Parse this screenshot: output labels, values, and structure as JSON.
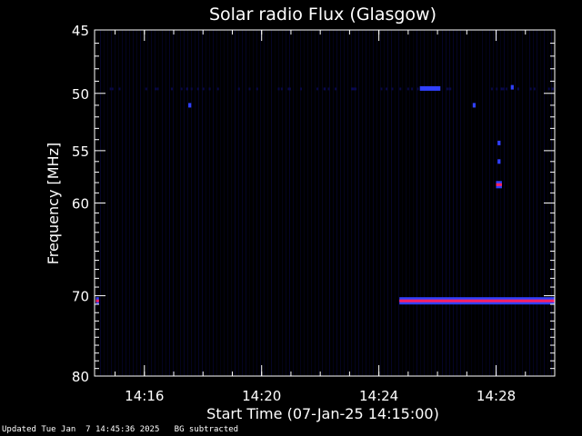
{
  "chart_data": {
    "type": "heatmap",
    "title": "Solar radio Flux (Glasgow)",
    "xlabel": "Start Time (07-Jan-25 14:15:00)",
    "ylabel": "Frequency [MHz]",
    "x_range_minutes": [
      14.3,
      30.0
    ],
    "x_ticks": [
      {
        "label": "14:16",
        "value": 16
      },
      {
        "label": "14:20",
        "value": 20
      },
      {
        "label": "14:24",
        "value": 24
      },
      {
        "label": "14:28",
        "value": 28
      }
    ],
    "y_scale": "log",
    "y_range": [
      45,
      80
    ],
    "y_ticks": [
      "45",
      "50",
      "55",
      "60",
      "70",
      "80"
    ],
    "y_tick_values": [
      45,
      50,
      55,
      60,
      70,
      80
    ],
    "features": [
      {
        "name": "",
        "freq_mhz": 70.6,
        "t_start": 24.7,
        "t_end": 30.0,
        "intensity": 1.0
      },
      {
        "name": "",
        "freq_mhz": 70.6,
        "t_start": 14.35,
        "t_end": 14.45,
        "intensity": 0.8
      },
      {
        "name": "",
        "freq_mhz": 58.2,
        "t_start": 28.0,
        "t_end": 28.2,
        "intensity": 0.9
      },
      {
        "name": "",
        "freq_mhz": 54.3,
        "t_start": 28.05,
        "t_end": 28.15,
        "intensity": 0.5
      },
      {
        "name": "",
        "freq_mhz": 56.0,
        "t_start": 28.05,
        "t_end": 28.15,
        "intensity": 0.4
      },
      {
        "name": "",
        "freq_mhz": 49.6,
        "t_start": 25.4,
        "t_end": 26.1,
        "intensity": 0.4
      },
      {
        "name": "",
        "freq_mhz": 49.5,
        "t_start": 28.5,
        "t_end": 28.6,
        "intensity": 0.35
      },
      {
        "name": "",
        "freq_mhz": 51.0,
        "t_start": 17.5,
        "t_end": 17.6,
        "intensity": 0.3
      },
      {
        "name": "",
        "freq_mhz": 51.0,
        "t_start": 27.2,
        "t_end": 27.3,
        "intensity": 0.3
      }
    ],
    "colors": {
      "background": "#000000",
      "low": "#0a0a55",
      "mid": "#3040ff",
      "high": "#ff2060"
    }
  },
  "footer": {
    "updated": "Updated Tue Jan  7 14:45:36 2025",
    "note": "BG subtracted"
  }
}
